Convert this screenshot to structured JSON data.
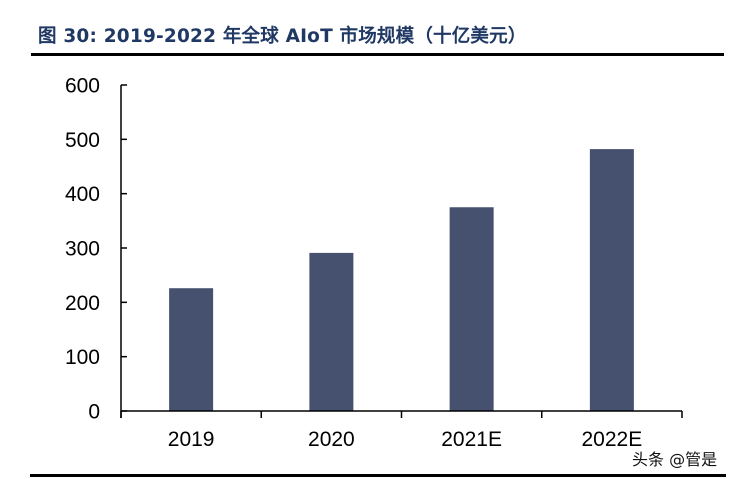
{
  "figure": {
    "title": "图 30:  2019-2022 年全球 AIoT 市场规模（十亿美元）",
    "title_color": "#1f3864",
    "bar_color": "#465170",
    "watermark": "头条 @管是"
  },
  "chart_data": {
    "type": "bar",
    "title": "2019-2022 年全球 AIoT 市场规模（十亿美元）",
    "xlabel": "",
    "ylabel": "",
    "categories": [
      "2019",
      "2020",
      "2021E",
      "2022E"
    ],
    "values": [
      226,
      291,
      375,
      482
    ],
    "ylim": [
      0,
      600
    ],
    "yticks": [
      "0",
      "100",
      "200",
      "300",
      "400",
      "500",
      "600"
    ],
    "grid": false,
    "legend": null
  }
}
